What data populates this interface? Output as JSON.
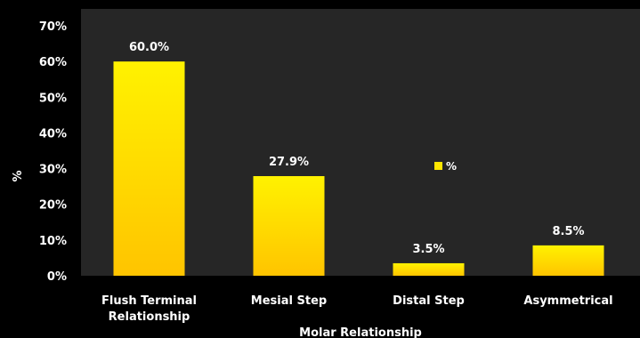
{
  "chart_data": {
    "type": "bar",
    "categories": [
      [
        "Flush Terminal",
        "Relationship"
      ],
      [
        "Mesial Step"
      ],
      [
        "Distal Step"
      ],
      [
        "Asymmetrical"
      ]
    ],
    "series": [
      {
        "name": "%",
        "values": [
          60.0,
          27.9,
          3.5,
          8.5
        ]
      }
    ],
    "data_labels": [
      "60.0%",
      "27.9%",
      "3.5%",
      "8.5%"
    ],
    "y_ticks": [
      "0%",
      "10%",
      "20%",
      "30%",
      "40%",
      "50%",
      "60%",
      "70%"
    ],
    "ylim": [
      0,
      70
    ],
    "xlabel": "Molar Relationship",
    "ylabel": "%",
    "legend_position": "right",
    "grid": false,
    "colors": {
      "background": "#000000",
      "plot_area": "#262626",
      "bar_light": "#FFF200",
      "bar_dark": "#FFC400",
      "text": "#FFFFFF"
    }
  }
}
